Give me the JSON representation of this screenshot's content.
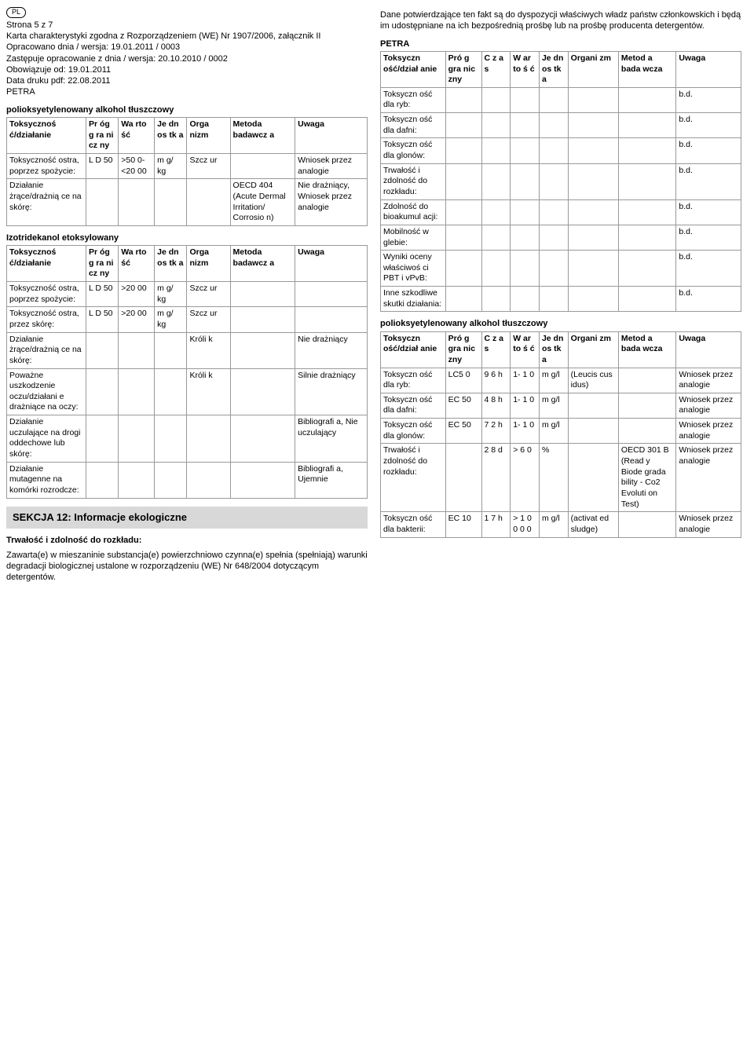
{
  "badge": "PL",
  "header": {
    "line1": "Strona  5 z 7",
    "line2": "Karta charakterystyki zgodna z Rozporządzeniem (WE) Nr 1907/2006, załącznik II",
    "line3": "Opracowano dnia / wersja: 19.01.2011  / 0003",
    "line4": "Zastępuje opracowanie z dnia / wersja: 20.10.2010  / 0002",
    "line5": "Obowiązuje od: 19.01.2011",
    "line6": "Data druku pdf: 22.08.2011",
    "line7": "PETRA"
  },
  "tox_headers": {
    "c1": "Toksycznoś ć/działanie",
    "c2": "Pr óg g ra ni cz ny",
    "c3": "Wa rto ść",
    "c4": "Je dn os tk a",
    "c5": "Orga nizm",
    "c6": "Metoda badawcz a",
    "c7": "Uwaga"
  },
  "tableA": {
    "title": "polioksyetylenowany alkohol tłuszczowy",
    "rows": [
      {
        "c1": "Toksyczność ostra, poprzez spożycie:",
        "c2": "L D 50",
        "c3": ">50 0- <20 00",
        "c4": "m g/ kg",
        "c5": "Szcz ur",
        "c6": "",
        "c7": "Wniosek przez analogie"
      },
      {
        "c1": "Działanie żrące/drażnią ce na skórę:",
        "c2": "",
        "c3": "",
        "c4": "",
        "c5": "",
        "c6": "OECD 404 (Acute Dermal Irritation/ Corrosio n)",
        "c7": "Nie drażniący, Wniosek przez analogie"
      }
    ]
  },
  "tableB": {
    "title": "Izotridekanol etoksylowany",
    "rows": [
      {
        "c1": "Toksyczność ostra, poprzez spożycie:",
        "c2": "L D 50",
        "c3": ">20 00",
        "c4": "m g/ kg",
        "c5": "Szcz ur",
        "c6": "",
        "c7": ""
      },
      {
        "c1": "Toksyczność ostra, przez skórę:",
        "c2": "L D 50",
        "c3": ">20 00",
        "c4": "m g/ kg",
        "c5": "Szcz ur",
        "c6": "",
        "c7": ""
      },
      {
        "c1": "Działanie żrące/drażnią ce na skórę:",
        "c2": "",
        "c3": "",
        "c4": "",
        "c5": "Króli k",
        "c6": "",
        "c7": "Nie drażniący"
      },
      {
        "c1": "Poważne uszkodzenie oczu/działani e drażniące na oczy:",
        "c2": "",
        "c3": "",
        "c4": "",
        "c5": "Króli k",
        "c6": "",
        "c7": "Silnie drażniący"
      },
      {
        "c1": "Działanie uczulające na drogi oddechowe lub skórę:",
        "c2": "",
        "c3": "",
        "c4": "",
        "c5": "",
        "c6": "",
        "c7": "Bibliografi a, Nie uczulający"
      },
      {
        "c1": "Działanie mutagenne na komórki rozrodcze:",
        "c2": "",
        "c3": "",
        "c4": "",
        "c5": "",
        "c6": "",
        "c7": "Bibliografi a, Ujemnie"
      }
    ]
  },
  "section12": {
    "title": "SEKCJA 12: Informacje ekologiczne",
    "sub1_title": "Trwałość i zdolność do rozkładu:",
    "sub1_body": "Zawarta(e) w mieszaninie substancja(e) powierzchniowo czynna(e) spełnia (spełniają) warunki degradacji biologicznej ustalone w rozporządzeniu (WE) Nr 648/2004 dotyczącym detergentów."
  },
  "rightIntro": "Dane potwierdzające ten fakt są do dyspozycji właściwych władz państw członkowskich i będą im udostępniane na ich bezpośrednią prośbę lub na prośbę producenta detergentów.",
  "eco_headers": {
    "c1": "Toksyczn ość/dział anie",
    "c2": "Pró g gra nic zny",
    "c3": "C z a s",
    "c4": "W ar to ś ć",
    "c5": "Je dn os tk a",
    "c6": "Organi zm",
    "c7": "Metod a bada wcza",
    "c8": "Uwaga"
  },
  "tableC": {
    "title": "PETRA",
    "rows": [
      {
        "c1": "Toksyczn ość dla ryb:",
        "c2": "",
        "c3": "",
        "c4": "",
        "c5": "",
        "c6": "",
        "c7": "",
        "c8": "b.d."
      },
      {
        "c1": "Toksyczn ość dla dafni:",
        "c2": "",
        "c3": "",
        "c4": "",
        "c5": "",
        "c6": "",
        "c7": "",
        "c8": "b.d."
      },
      {
        "c1": "Toksyczn ość dla glonów:",
        "c2": "",
        "c3": "",
        "c4": "",
        "c5": "",
        "c6": "",
        "c7": "",
        "c8": "b.d."
      },
      {
        "c1": "Trwałość i zdolność do rozkładu:",
        "c2": "",
        "c3": "",
        "c4": "",
        "c5": "",
        "c6": "",
        "c7": "",
        "c8": "b.d."
      },
      {
        "c1": "Zdolność do bioakumul acji:",
        "c2": "",
        "c3": "",
        "c4": "",
        "c5": "",
        "c6": "",
        "c7": "",
        "c8": "b.d."
      },
      {
        "c1": "Mobilność  w glebie:",
        "c2": "",
        "c3": "",
        "c4": "",
        "c5": "",
        "c6": "",
        "c7": "",
        "c8": "b.d."
      },
      {
        "c1": "Wyniki oceny właściwoś ci PBT i vPvB:",
        "c2": "",
        "c3": "",
        "c4": "",
        "c5": "",
        "c6": "",
        "c7": "",
        "c8": "b.d."
      },
      {
        "c1": "Inne szkodliwe  skutki działania:",
        "c2": "",
        "c3": "",
        "c4": "",
        "c5": "",
        "c6": "",
        "c7": "",
        "c8": "b.d."
      }
    ]
  },
  "tableD": {
    "title": "polioksyetylenowany alkohol tłuszczowy",
    "rows": [
      {
        "c1": "Toksyczn ość dla ryb:",
        "c2": "LC5 0",
        "c3": "9 6 h",
        "c4": "1- 1 0",
        "c5": "m g/l",
        "c6": "(Leucis cus idus)",
        "c7": "",
        "c8": "Wniosek przez analogie"
      },
      {
        "c1": "Toksyczn ość dla dafni:",
        "c2": "EC 50",
        "c3": "4 8 h",
        "c4": "1- 1 0",
        "c5": "m g/l",
        "c6": "",
        "c7": "",
        "c8": "Wniosek przez analogie"
      },
      {
        "c1": "Toksyczn ość dla glonów:",
        "c2": "EC 50",
        "c3": "7 2 h",
        "c4": "1- 1 0",
        "c5": "m g/l",
        "c6": "",
        "c7": "",
        "c8": "Wniosek przez analogie"
      },
      {
        "c1": "Trwałość i zdolność do rozkładu:",
        "c2": "",
        "c3": "2 8 d",
        "c4": "> 6 0",
        "c5": "%",
        "c6": "",
        "c7": "OECD  301 B (Read y Biode grada bility - Co2 Evoluti on Test)",
        "c8": "Wniosek przez analogie"
      },
      {
        "c1": "Toksyczn ość dla bakterii:",
        "c2": "EC 10",
        "c3": "1 7 h",
        "c4": "> 1 0 0 0 0",
        "c5": "m g/l",
        "c6": "(activat ed sludge)",
        "c7": "",
        "c8": "Wniosek przez analogie"
      }
    ]
  }
}
